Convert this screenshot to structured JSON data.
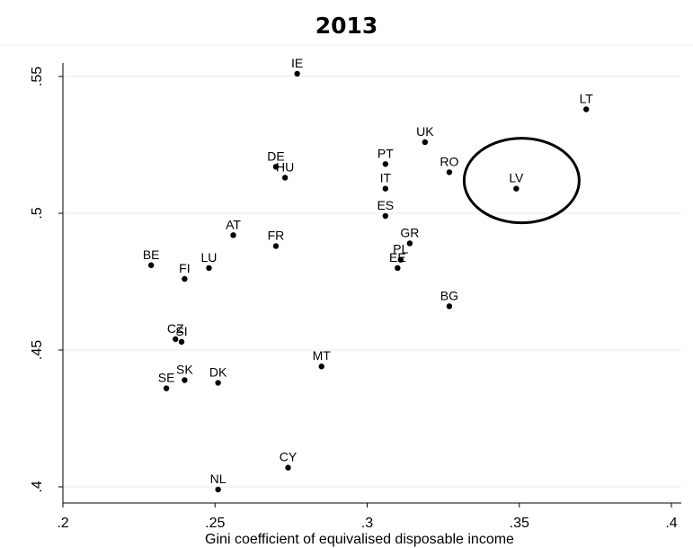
{
  "chart_data": {
    "type": "scatter",
    "title": "2013",
    "xlabel": "Gini coefficient of equivalised disposable income",
    "ylabel": "",
    "xlim": [
      0.2,
      0.4
    ],
    "ylim": [
      0.4,
      0.55
    ],
    "xticks": [
      ".2",
      ".25",
      ".3",
      ".35",
      ".4"
    ],
    "xtick_values": [
      0.2,
      0.25,
      0.3,
      0.35,
      0.4
    ],
    "yticks": [
      ".4",
      ".45",
      ".5",
      ".55"
    ],
    "ytick_values": [
      0.4,
      0.45,
      0.5,
      0.55
    ],
    "grid": true,
    "highlight": {
      "label": "LV",
      "shape": "ellipse"
    },
    "points": [
      {
        "label": "IE",
        "x": 0.277,
        "y": 0.551
      },
      {
        "label": "LT",
        "x": 0.372,
        "y": 0.538
      },
      {
        "label": "UK",
        "x": 0.319,
        "y": 0.526
      },
      {
        "label": "DE",
        "x": 0.27,
        "y": 0.517
      },
      {
        "label": "HU",
        "x": 0.273,
        "y": 0.513
      },
      {
        "label": "PT",
        "x": 0.306,
        "y": 0.518
      },
      {
        "label": "RO",
        "x": 0.327,
        "y": 0.515
      },
      {
        "label": "LV",
        "x": 0.349,
        "y": 0.509
      },
      {
        "label": "IT",
        "x": 0.306,
        "y": 0.509
      },
      {
        "label": "ES",
        "x": 0.306,
        "y": 0.499
      },
      {
        "label": "AT",
        "x": 0.256,
        "y": 0.492
      },
      {
        "label": "FR",
        "x": 0.27,
        "y": 0.488
      },
      {
        "label": "GR",
        "x": 0.314,
        "y": 0.489
      },
      {
        "label": "PL",
        "x": 0.311,
        "y": 0.483
      },
      {
        "label": "EE",
        "x": 0.31,
        "y": 0.48
      },
      {
        "label": "BE",
        "x": 0.229,
        "y": 0.481
      },
      {
        "label": "LU",
        "x": 0.248,
        "y": 0.48
      },
      {
        "label": "FI",
        "x": 0.24,
        "y": 0.476
      },
      {
        "label": "BG",
        "x": 0.327,
        "y": 0.466
      },
      {
        "label": "CZ",
        "x": 0.237,
        "y": 0.454
      },
      {
        "label": "SI",
        "x": 0.239,
        "y": 0.453
      },
      {
        "label": "MT",
        "x": 0.285,
        "y": 0.444
      },
      {
        "label": "SK",
        "x": 0.24,
        "y": 0.439
      },
      {
        "label": "DK",
        "x": 0.251,
        "y": 0.438
      },
      {
        "label": "SE",
        "x": 0.234,
        "y": 0.436
      },
      {
        "label": "CY",
        "x": 0.274,
        "y": 0.407
      },
      {
        "label": "NL",
        "x": 0.251,
        "y": 0.399
      }
    ]
  }
}
